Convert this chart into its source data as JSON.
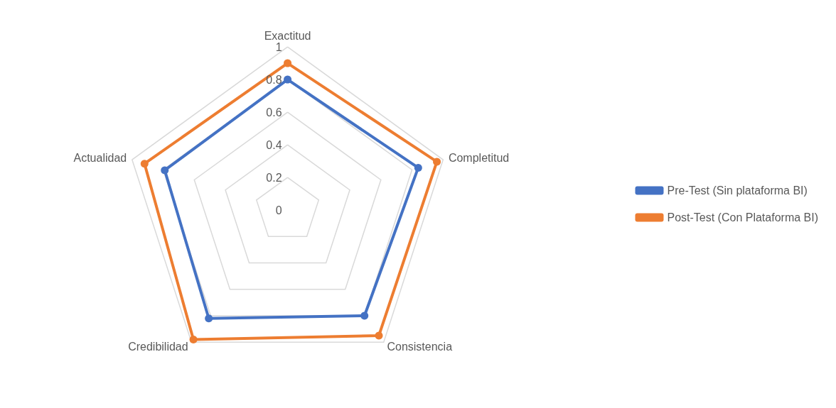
{
  "chart_data": {
    "type": "radar",
    "categories": [
      "Exactitud",
      "Completitud",
      "Consistencia",
      "Credibilidad",
      "Actualidad"
    ],
    "series": [
      {
        "name": "Pre-Test (Sin plataforma BI)",
        "color": "#4472c4",
        "values": [
          0.8,
          0.84,
          0.8,
          0.82,
          0.79
        ]
      },
      {
        "name": "Post-Test (Con Plataforma BI)",
        "color": "#ed7d31",
        "values": [
          0.9,
          0.96,
          0.95,
          0.98,
          0.92
        ]
      }
    ],
    "ylim": [
      0,
      1
    ],
    "yticks": [
      0,
      0.2,
      0.4,
      0.6,
      0.8,
      1
    ],
    "grid": true,
    "legend": "right",
    "marker": "circle",
    "line_style": "solid"
  }
}
